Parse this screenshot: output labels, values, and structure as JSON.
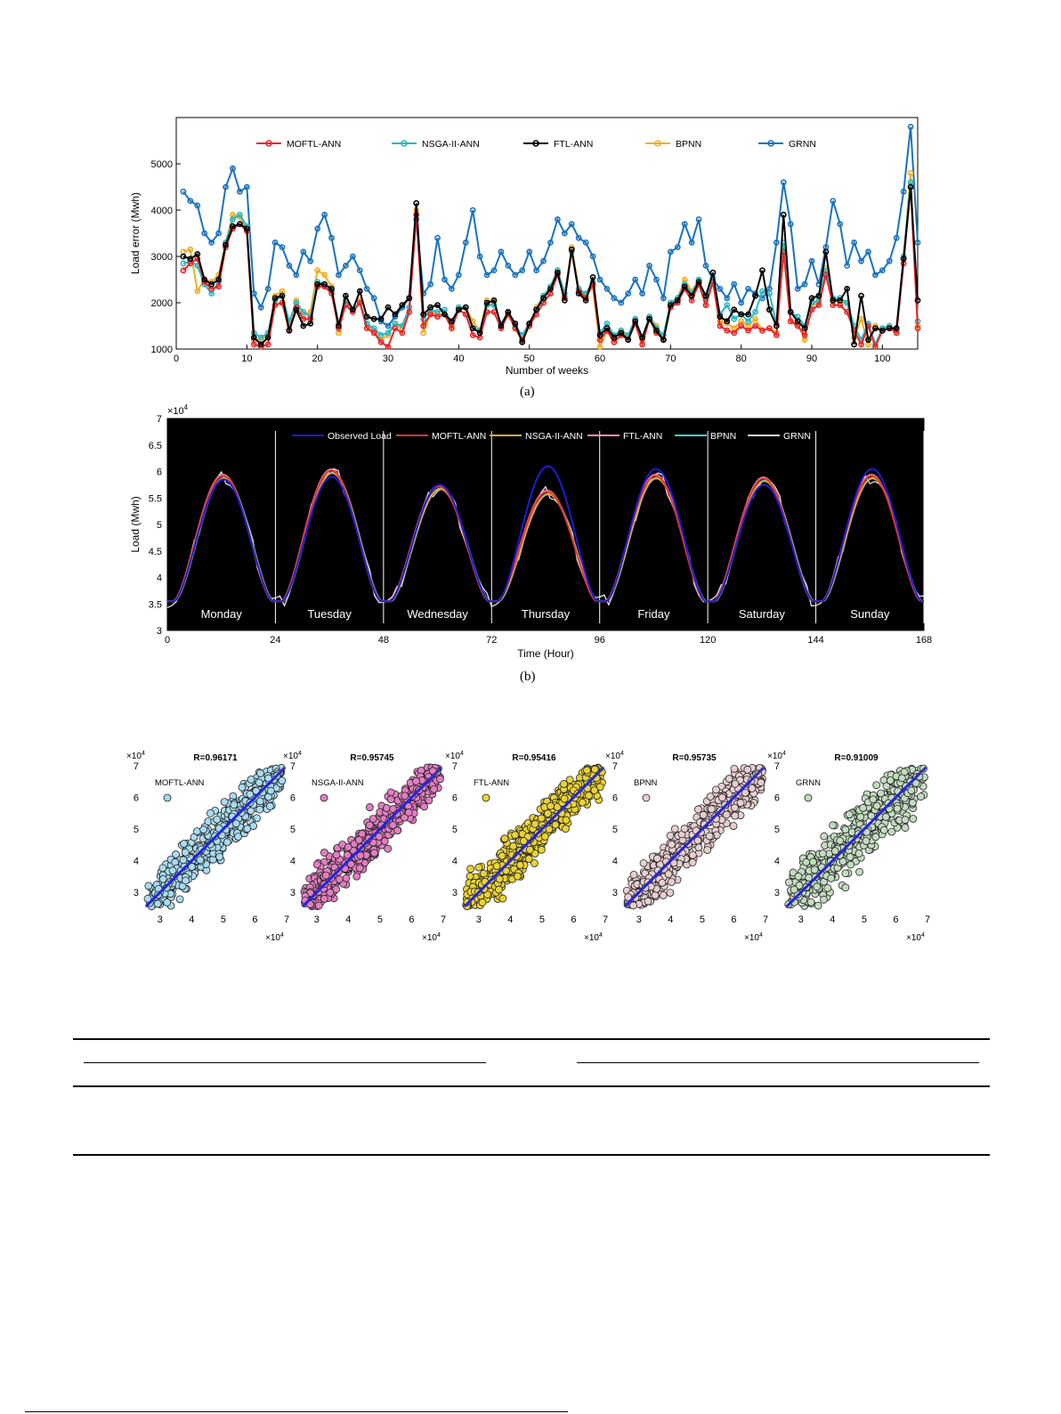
{
  "figure_a": {
    "caption": "(a)",
    "chart_data": {
      "type": "line",
      "xlabel": "Number of weeks",
      "ylabel": "Load error (Mwh)",
      "xlim": [
        0,
        105
      ],
      "ylim": [
        1000,
        6000
      ],
      "xticks": [
        "0",
        "10",
        "20",
        "30",
        "40",
        "50",
        "60",
        "70",
        "80",
        "90",
        "100"
      ],
      "yticks": [
        "1000",
        "2000",
        "3000",
        "4000",
        "5000"
      ],
      "legend_position": "top",
      "series": [
        {
          "name": "MOFTL-ANN",
          "color": "#e8262a",
          "values": [
            2700,
            2850,
            2950,
            2450,
            2300,
            2350,
            3200,
            3600,
            3700,
            3550,
            1100,
            1050,
            1100,
            1950,
            2000,
            1400,
            1900,
            1650,
            1650,
            2350,
            2350,
            2200,
            1450,
            1950,
            1800,
            2000,
            1450,
            1350,
            1150,
            1050,
            1450,
            1350,
            1800,
            3900,
            1500,
            1750,
            1700,
            1750,
            1450,
            1850,
            1750,
            1300,
            1250,
            1800,
            1800,
            1450,
            1750,
            1450,
            1200,
            1500,
            1750,
            2000,
            2200,
            2600,
            2100,
            3150,
            2250,
            2100,
            2400,
            1200,
            1400,
            1150,
            1300,
            1200,
            1550,
            1100,
            1650,
            1350,
            1200,
            1900,
            2000,
            2300,
            2050,
            2400,
            1950,
            2450,
            1500,
            1400,
            1350,
            1500,
            1400,
            1500,
            1400,
            1450,
            1300,
            3100,
            1600,
            1500,
            1300,
            1850,
            1950,
            2600,
            1950,
            1950,
            1800,
            1400,
            1100,
            1500,
            1050,
            1400,
            1450,
            1350,
            2850,
            4500,
            1450
          ]
        },
        {
          "name": "NSGA-II-ANN",
          "color": "#29b8c4",
          "values": [
            2850,
            2900,
            2800,
            2400,
            2200,
            2450,
            3300,
            3800,
            3900,
            3650,
            1350,
            1250,
            1350,
            2050,
            2150,
            1600,
            2000,
            1800,
            1700,
            2450,
            2400,
            2250,
            1550,
            2050,
            1850,
            2000,
            1550,
            1450,
            1300,
            1350,
            1550,
            1500,
            1900,
            3900,
            1650,
            1850,
            1800,
            1850,
            1550,
            1900,
            1900,
            1450,
            1400,
            1950,
            1950,
            1550,
            1800,
            1500,
            1300,
            1550,
            1850,
            2150,
            2350,
            2700,
            2200,
            3100,
            2300,
            2200,
            2450,
            1350,
            1550,
            1300,
            1400,
            1300,
            1650,
            1250,
            1700,
            1450,
            1300,
            2000,
            2100,
            2400,
            2200,
            2500,
            2050,
            2550,
            1750,
            1950,
            1650,
            1750,
            1600,
            1800,
            2250,
            2200,
            1550,
            3300,
            1800,
            1700,
            1500,
            2000,
            2050,
            2700,
            2100,
            2100,
            2000,
            1500,
            1200,
            1550,
            1100,
            1450,
            1500,
            1400,
            3000,
            4600,
            1600
          ]
        },
        {
          "name": "FTL-ANN",
          "color": "#000000",
          "values": [
            3000,
            2950,
            3050,
            2500,
            2400,
            2500,
            3250,
            3650,
            3700,
            3600,
            1250,
            1100,
            1250,
            2100,
            2150,
            1400,
            1850,
            1500,
            1550,
            2400,
            2400,
            2300,
            1500,
            2150,
            1850,
            2250,
            1700,
            1650,
            1650,
            1900,
            1750,
            1950,
            2100,
            4150,
            1750,
            1900,
            1950,
            1750,
            1600,
            1850,
            1900,
            1450,
            1350,
            2000,
            2050,
            1500,
            1800,
            1550,
            1150,
            1550,
            1850,
            2100,
            2300,
            2650,
            2050,
            3150,
            2200,
            2050,
            2550,
            1300,
            1450,
            1250,
            1350,
            1200,
            1600,
            1250,
            1650,
            1400,
            1200,
            1950,
            2050,
            2350,
            2150,
            2450,
            2150,
            2650,
            1700,
            1600,
            1850,
            1750,
            1750,
            2150,
            2700,
            1850,
            1500,
            3900,
            1800,
            1600,
            1450,
            2100,
            2150,
            3100,
            2050,
            2050,
            2300,
            1100,
            2150,
            1200,
            1450,
            1400,
            1450,
            1450,
            2950,
            4500,
            2050
          ]
        },
        {
          "name": "BPNN",
          "color": "#f0ae24",
          "values": [
            3100,
            3150,
            2250,
            2500,
            2450,
            2600,
            3300,
            3900,
            3850,
            3600,
            1200,
            1200,
            1300,
            2150,
            2250,
            1500,
            2050,
            1750,
            1800,
            2700,
            2600,
            2350,
            1350,
            2050,
            1800,
            2050,
            1550,
            1400,
            1200,
            1300,
            1550,
            1450,
            1900,
            4000,
            1350,
            1800,
            1750,
            1750,
            1500,
            1900,
            1900,
            1600,
            1400,
            2050,
            2000,
            1500,
            1800,
            1450,
            1150,
            1500,
            1900,
            2150,
            2350,
            2700,
            2150,
            3200,
            2300,
            2150,
            2350,
            1050,
            1400,
            1200,
            1400,
            1250,
            1650,
            1200,
            1700,
            1500,
            1200,
            2000,
            2100,
            2500,
            2250,
            2500,
            1950,
            2450,
            1600,
            1550,
            1450,
            1600,
            1500,
            1650,
            1400,
            1450,
            1350,
            3150,
            1600,
            1550,
            1200,
            1950,
            2000,
            2750,
            2050,
            2000,
            2000,
            1250,
            1650,
            1100,
            1500,
            1400,
            1450,
            1350,
            2950,
            4800,
            1500
          ]
        },
        {
          "name": "GRNN",
          "color": "#1a72bd",
          "values": [
            4400,
            4200,
            4100,
            3500,
            3300,
            3500,
            4500,
            4900,
            4400,
            4500,
            2200,
            1900,
            2300,
            3300,
            3200,
            2800,
            2600,
            3100,
            2900,
            3600,
            3900,
            3400,
            2600,
            2800,
            3000,
            2700,
            2300,
            2100,
            1600,
            1500,
            1700,
            1900,
            2100,
            3800,
            2200,
            2400,
            3400,
            2500,
            2300,
            2600,
            3300,
            4000,
            3000,
            2600,
            2700,
            3100,
            2800,
            2600,
            2700,
            3100,
            2700,
            2900,
            3300,
            3800,
            3500,
            3700,
            3400,
            3300,
            3000,
            2500,
            2300,
            2100,
            2000,
            2200,
            2500,
            2200,
            2800,
            2500,
            2100,
            3100,
            3200,
            3700,
            3300,
            3800,
            2800,
            2500,
            2300,
            2100,
            2400,
            2000,
            2300,
            2200,
            2100,
            2300,
            3300,
            4600,
            3700,
            2300,
            2400,
            2900,
            2400,
            3200,
            4200,
            3700,
            2800,
            3300,
            2900,
            3100,
            2600,
            2700,
            2900,
            3400,
            4400,
            5800,
            3300
          ]
        }
      ]
    }
  },
  "figure_b": {
    "caption": "(b)",
    "chart_data": {
      "type": "line",
      "background": "#000000",
      "xlabel": "Time (Hour)",
      "ylabel": "Load (Mwh)",
      "exponent": "×10",
      "exponent_power": "4",
      "xlim": [
        0,
        168
      ],
      "ylim": [
        3,
        7
      ],
      "xticks": [
        "0",
        "24",
        "48",
        "72",
        "96",
        "120",
        "144",
        "168"
      ],
      "yticks": [
        "3",
        "3.5",
        "4",
        "4.5",
        "5",
        "5.5",
        "6",
        "6.5",
        "7"
      ],
      "day_labels": [
        "Monday",
        "Tuesday",
        "Wednesday",
        "Thursday",
        "Friday",
        "Saturday",
        "Sunday"
      ],
      "day_peaks_observed": [
        5.85,
        5.9,
        5.75,
        6.1,
        6.05,
        5.75,
        6.05
      ],
      "day_peaks_predicted": [
        5.9,
        6.0,
        5.7,
        5.6,
        5.9,
        5.85,
        5.9
      ],
      "series": [
        {
          "name": "Observed Load",
          "color": "#1c1cd8"
        },
        {
          "name": "MOFTL-ANN",
          "color": "#e33434"
        },
        {
          "name": "NSGA-II-ANN",
          "color": "#d9a93a"
        },
        {
          "name": "FTL-ANN",
          "color": "#f28fb8"
        },
        {
          "name": "BPNN",
          "color": "#3cd2d2"
        },
        {
          "name": "GRNN",
          "color": "#e6e6e6"
        }
      ]
    }
  },
  "figure_c": {
    "chart_data": [
      {
        "type": "scatter",
        "title": "R=0.96171",
        "legend": "MOFTL-ANN",
        "color": "#a9dbf0",
        "xlim": [
          2.5,
          7
        ],
        "ylim": [
          2.5,
          7
        ],
        "xticks": [
          "3",
          "4",
          "5",
          "6",
          "7"
        ],
        "yticks": [
          "3",
          "4",
          "5",
          "6",
          "7"
        ],
        "exponent": "×10",
        "exponent_power": "4"
      },
      {
        "type": "scatter",
        "title": "R=0.95745",
        "legend": "NSGA-II-ANN",
        "color": "#e27ec1",
        "xlim": [
          2.5,
          7
        ],
        "ylim": [
          2.5,
          7
        ],
        "xticks": [
          "3",
          "4",
          "5",
          "6",
          "7"
        ],
        "yticks": [
          "3",
          "4",
          "5",
          "6",
          "7"
        ],
        "exponent": "×10",
        "exponent_power": "4"
      },
      {
        "type": "scatter",
        "title": "R=0.95416",
        "legend": "FTL-ANN",
        "color": "#e9d234",
        "xlim": [
          2.5,
          7
        ],
        "ylim": [
          2.5,
          7
        ],
        "xticks": [
          "3",
          "4",
          "5",
          "6",
          "7"
        ],
        "yticks": [
          "3",
          "4",
          "5",
          "6",
          "7"
        ],
        "exponent": "×10",
        "exponent_power": "4"
      },
      {
        "type": "scatter",
        "title": "R=0.95735",
        "legend": "BPNN",
        "color": "#e8cfcf",
        "xlim": [
          2.5,
          7
        ],
        "ylim": [
          2.5,
          7
        ],
        "xticks": [
          "3",
          "4",
          "5",
          "6",
          "7"
        ],
        "yticks": [
          "3",
          "4",
          "5",
          "6",
          "7"
        ],
        "exponent": "×10",
        "exponent_power": "4"
      },
      {
        "type": "scatter",
        "title": "R=0.91009",
        "legend": "GRNN",
        "color": "#c3dcc0",
        "xlim": [
          2.5,
          7
        ],
        "ylim": [
          2.5,
          7
        ],
        "xticks": [
          "3",
          "4",
          "5",
          "6",
          "7"
        ],
        "yticks": [
          "3",
          "4",
          "5",
          "6",
          "7"
        ],
        "exponent": "×10",
        "exponent_power": "4"
      }
    ]
  }
}
